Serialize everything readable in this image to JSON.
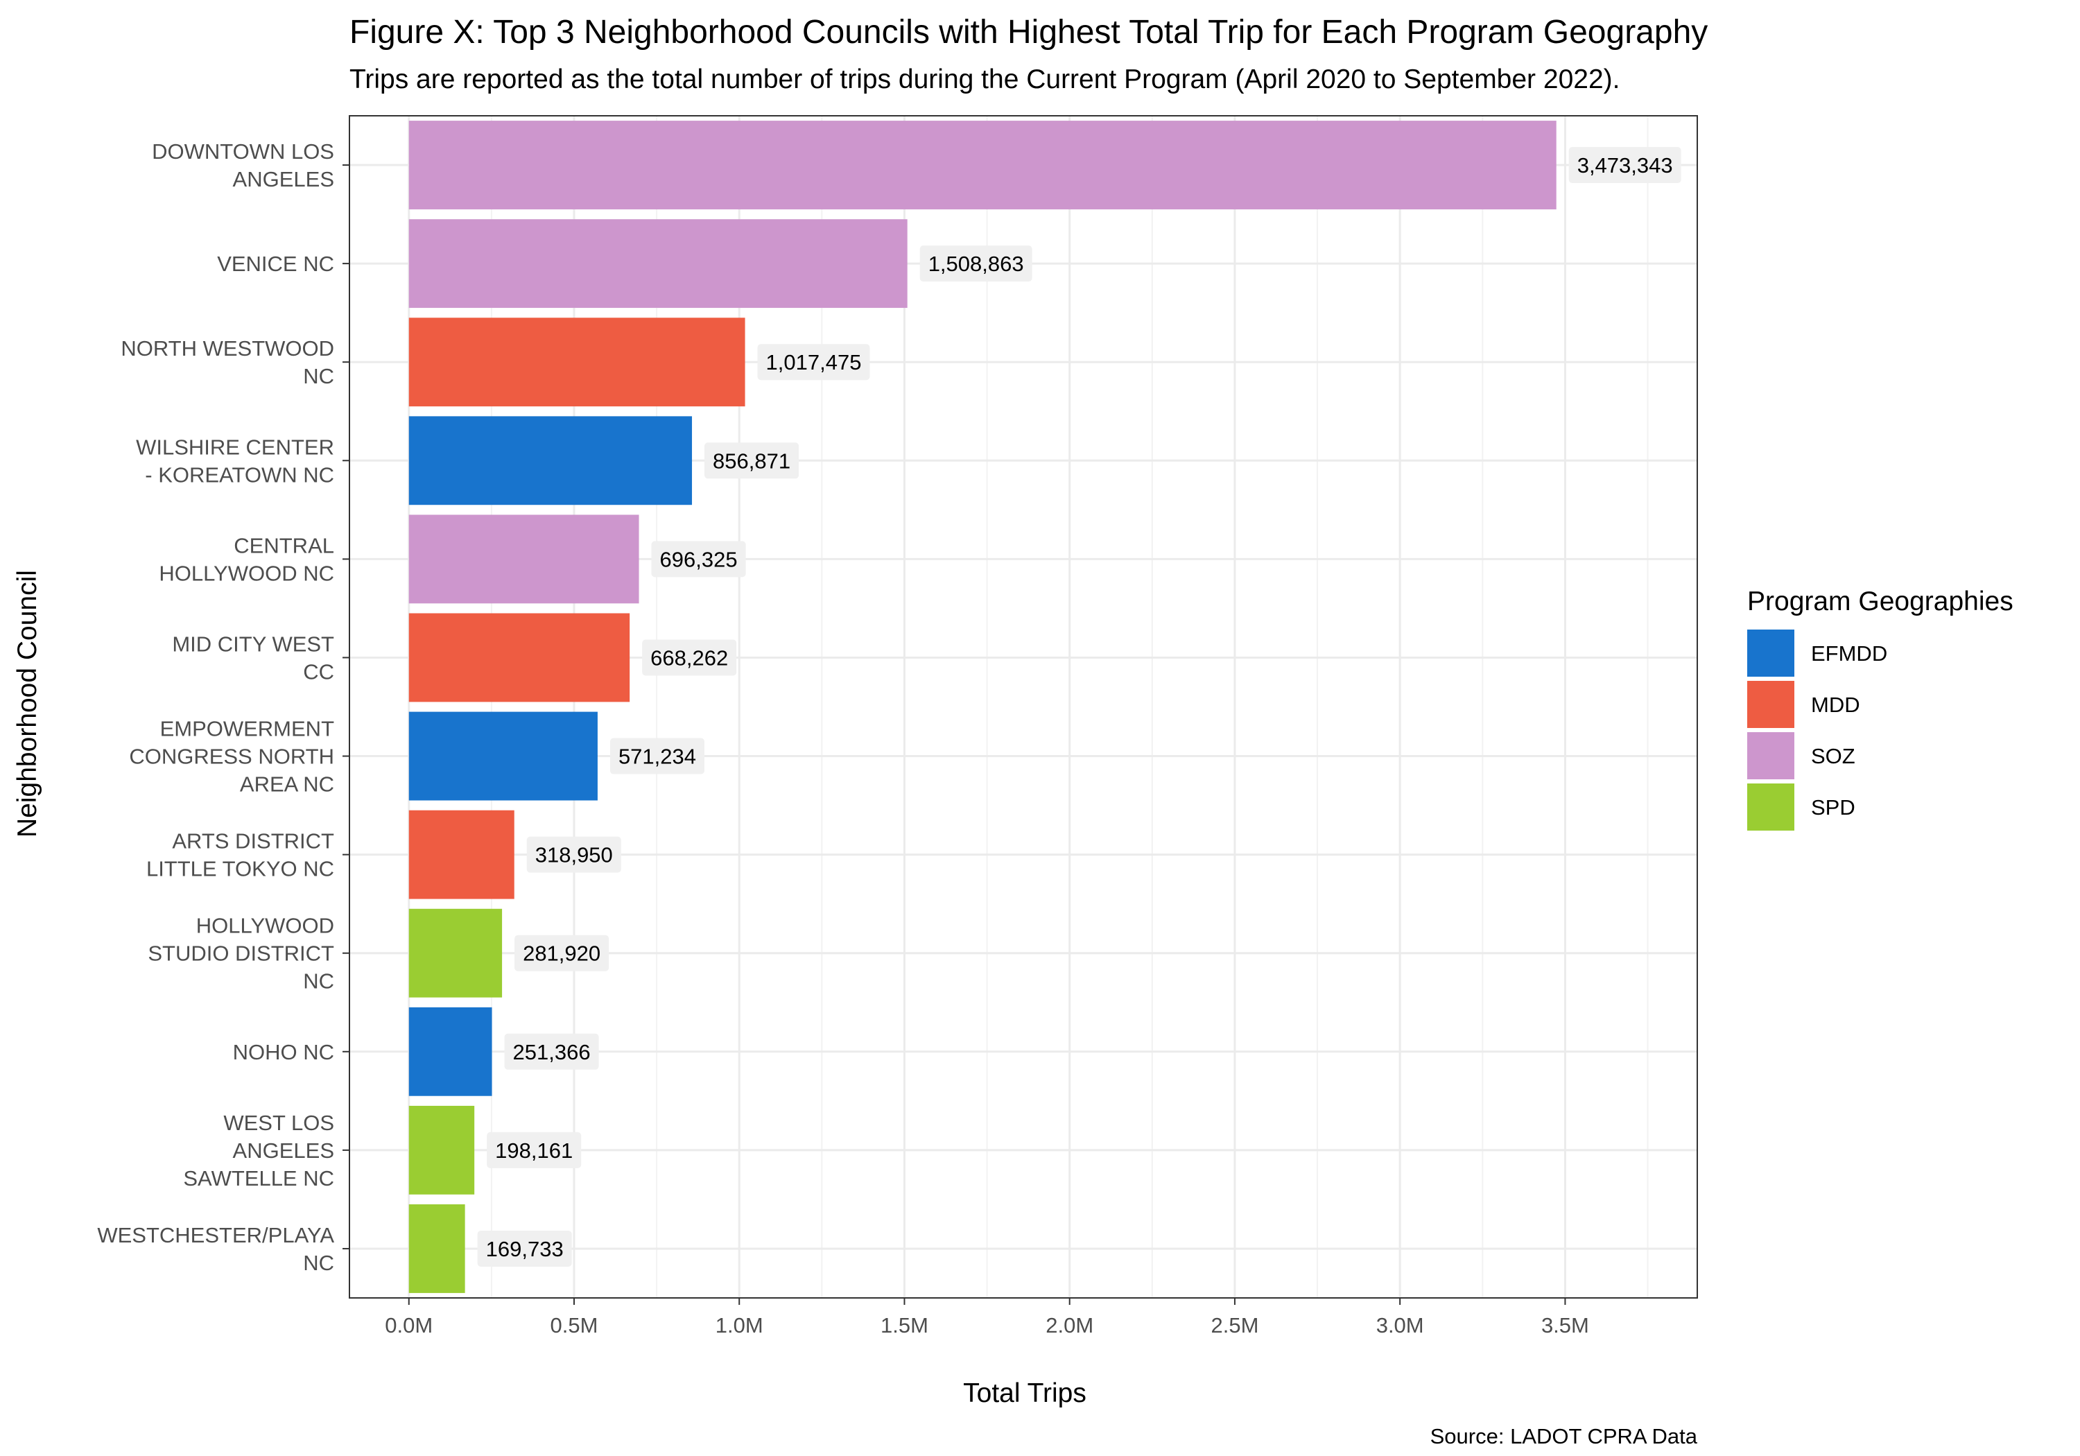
{
  "chart_data": {
    "type": "bar",
    "orientation": "horizontal",
    "title": "Figure X: Top 3 Neighborhood Councils with Highest Total Trip for Each Program Geography",
    "subtitle": "Trips are reported as the total number of trips during the Current Program (April 2020 to September 2022).",
    "xlabel": "Total Trips",
    "ylabel": "Neighborhood Council",
    "caption": "Source: LADOT CPRA Data",
    "xlim": [
      -180000,
      3900000
    ],
    "x_ticks": [
      {
        "value": 0,
        "label": "0.0M"
      },
      {
        "value": 500000,
        "label": "0.5M"
      },
      {
        "value": 1000000,
        "label": "1.0M"
      },
      {
        "value": 1500000,
        "label": "1.5M"
      },
      {
        "value": 2000000,
        "label": "2.0M"
      },
      {
        "value": 2500000,
        "label": "2.5M"
      },
      {
        "value": 3000000,
        "label": "3.0M"
      },
      {
        "value": 3500000,
        "label": "3.5M"
      }
    ],
    "grid": true,
    "legend": {
      "title": "Program Geographies",
      "position": "right",
      "entries": [
        {
          "name": "EFMDD",
          "color": "#1874CD"
        },
        {
          "name": "MDD",
          "color": "#EE5C42"
        },
        {
          "name": "SOZ",
          "color": "#CD96CD"
        },
        {
          "name": "SPD",
          "color": "#9ACD32"
        }
      ]
    },
    "bars": [
      {
        "category": "DOWNTOWN LOS ANGELES",
        "category_lines": [
          "DOWNTOWN LOS",
          "ANGELES"
        ],
        "value": 3473343,
        "label": "3,473,343",
        "geography": "SOZ"
      },
      {
        "category": "VENICE NC",
        "category_lines": [
          "VENICE NC"
        ],
        "value": 1508863,
        "label": "1,508,863",
        "geography": "SOZ"
      },
      {
        "category": "NORTH WESTWOOD NC",
        "category_lines": [
          "NORTH WESTWOOD",
          "NC"
        ],
        "value": 1017475,
        "label": "1,017,475",
        "geography": "MDD"
      },
      {
        "category": "WILSHIRE CENTER - KOREATOWN NC",
        "category_lines": [
          "WILSHIRE CENTER",
          "- KOREATOWN NC"
        ],
        "value": 856871,
        "label": "856,871",
        "geography": "EFMDD"
      },
      {
        "category": "CENTRAL HOLLYWOOD NC",
        "category_lines": [
          "CENTRAL",
          "HOLLYWOOD NC"
        ],
        "value": 696325,
        "label": "696,325",
        "geography": "SOZ"
      },
      {
        "category": "MID CITY WEST CC",
        "category_lines": [
          "MID CITY WEST",
          "CC"
        ],
        "value": 668262,
        "label": "668,262",
        "geography": "MDD"
      },
      {
        "category": "EMPOWERMENT CONGRESS NORTH AREA NC",
        "category_lines": [
          "EMPOWERMENT",
          "CONGRESS NORTH",
          "AREA NC"
        ],
        "value": 571234,
        "label": "571,234",
        "geography": "EFMDD"
      },
      {
        "category": "ARTS DISTRICT LITTLE TOKYO NC",
        "category_lines": [
          "ARTS DISTRICT",
          "LITTLE TOKYO NC"
        ],
        "value": 318950,
        "label": "318,950",
        "geography": "MDD"
      },
      {
        "category": "HOLLYWOOD STUDIO DISTRICT NC",
        "category_lines": [
          "HOLLYWOOD",
          "STUDIO DISTRICT",
          "NC"
        ],
        "value": 281920,
        "label": "281,920",
        "geography": "SPD"
      },
      {
        "category": "NOHO NC",
        "category_lines": [
          "NOHO NC"
        ],
        "value": 251366,
        "label": "251,366",
        "geography": "EFMDD"
      },
      {
        "category": "WEST LOS ANGELES SAWTELLE NC",
        "category_lines": [
          "WEST LOS",
          "ANGELES",
          "SAWTELLE NC"
        ],
        "value": 198161,
        "label": "198,161",
        "geography": "SPD"
      },
      {
        "category": "WESTCHESTER/PLAYA NC",
        "category_lines": [
          "WESTCHESTER/PLAYA",
          "NC"
        ],
        "value": 169733,
        "label": "169,733",
        "geography": "SPD"
      }
    ]
  }
}
